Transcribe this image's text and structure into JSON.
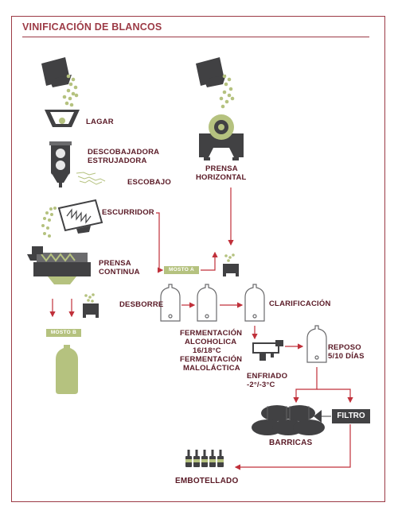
{
  "title": "VINIFICACIÓN DE BLANCOS",
  "labels": {
    "lagar": "LAGAR",
    "descobajadora": "DESCOBAJADORA",
    "estrujadora": "ESTRUJADORA",
    "escobajo": "ESCOBAJO",
    "escurridor": "ESCURRIDOR",
    "prensa_continua_1": "PRENSA",
    "prensa_continua_2": "CONTINUA",
    "prensa_horizontal_1": "PRENSA",
    "prensa_horizontal_2": "HORIZONTAL",
    "mosto_a": "MOSTO A",
    "mosto_b": "MOSTO B",
    "desborre": "DESBORRE",
    "clarificacion": "CLARIFICACIÓN",
    "fermentacion_1": "FERMENTACIÓN",
    "fermentacion_2": "ALCOHOLICA",
    "fermentacion_3": "16/18°C",
    "fermentacion_4": "FERMENTACIÓN",
    "fermentacion_5": "MALOLÁCTICA",
    "enfriado_1": "ENFRIADO",
    "enfriado_2": "-2°/-3°C",
    "reposo_1": "REPOSO",
    "reposo_2": "5/10 DÍAS",
    "filtro": "FILTRO",
    "barricas": "BARRICAS",
    "embotellado": "EMBOTELLADO"
  },
  "colors": {
    "accent": "#9c3a45",
    "label": "#5a1a26",
    "arrow": "#c0303a",
    "machine": "#414143",
    "grape": "#b5c27f",
    "tank_outline": "#6b6b6d"
  }
}
